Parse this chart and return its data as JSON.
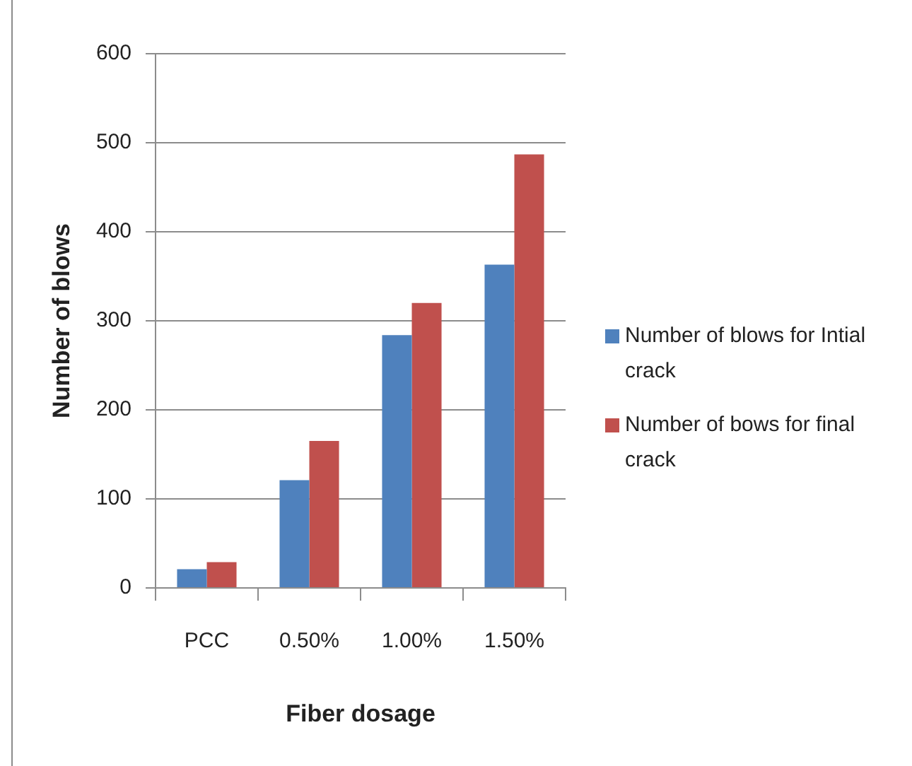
{
  "chart_data": {
    "type": "bar",
    "xlabel": "Fiber dosage",
    "ylabel": "Number of blows",
    "categories": [
      "PCC",
      "0.50%",
      "1.00%",
      "1.50%"
    ],
    "series": [
      {
        "name": "Number of blows for Intial crack",
        "color": "#4f81bd",
        "values": [
          21,
          121,
          284,
          363
        ]
      },
      {
        "name": "Number of bows for final crack",
        "color": "#c0504d",
        "values": [
          29,
          165,
          320,
          487
        ]
      }
    ],
    "ylim": [
      0,
      600
    ],
    "yticks": [
      0,
      100,
      200,
      300,
      400,
      500,
      600
    ],
    "grid": "y",
    "legend": "right"
  }
}
